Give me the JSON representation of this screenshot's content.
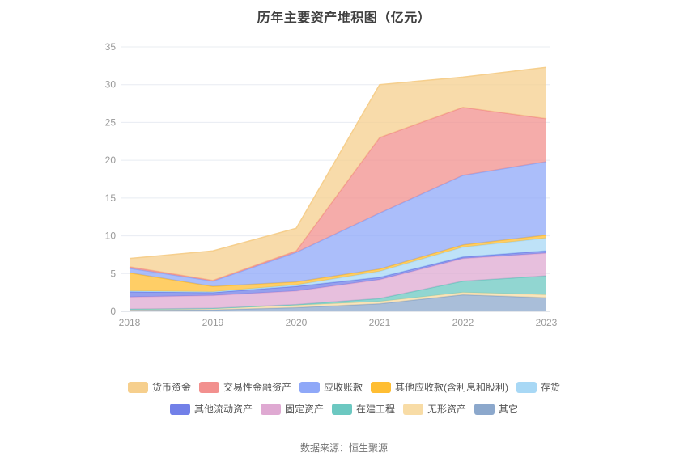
{
  "title": "历年主要资产堆积图（亿元）",
  "footer": {
    "source": "数据来源：恒生聚源"
  },
  "chart_data": {
    "type": "area",
    "stacked": true,
    "title": "历年主要资产堆积图（亿元）",
    "x": [
      "2018",
      "2019",
      "2020",
      "2021",
      "2022",
      "2023"
    ],
    "xlabel": "",
    "ylabel": "",
    "ylim": [
      0,
      35
    ],
    "y_ticks": [
      0,
      5,
      10,
      15,
      20,
      25,
      30,
      35
    ],
    "grid": true,
    "legend_position": "bottom",
    "stack_note": "series listed in legend order (top of stack first); stacking bottom-up uses reverse order",
    "series": [
      {
        "name": "货币资金",
        "color": "#F6CF8D",
        "values": [
          1.1,
          3.9,
          3.0,
          7.0,
          4.0,
          6.8
        ]
      },
      {
        "name": "交易性金融资产",
        "color": "#F2908E",
        "values": [
          0.2,
          0.1,
          0.2,
          10.0,
          9.0,
          5.7
        ]
      },
      {
        "name": "应收账款",
        "color": "#8FA8F8",
        "values": [
          0.6,
          0.7,
          3.9,
          7.4,
          9.2,
          9.7
        ]
      },
      {
        "name": "其他应收款(含利息和股利)",
        "color": "#FFBE33",
        "values": [
          2.4,
          0.7,
          0.4,
          0.3,
          0.3,
          0.4
        ]
      },
      {
        "name": "存货",
        "color": "#A8D8F5",
        "values": [
          0.1,
          0.1,
          0.2,
          0.8,
          1.3,
          1.7
        ]
      },
      {
        "name": "其他流动资产",
        "color": "#7280E8",
        "values": [
          0.7,
          0.4,
          0.6,
          0.3,
          0.2,
          0.3
        ]
      },
      {
        "name": "固定资产",
        "color": "#DFA9D2",
        "values": [
          1.6,
          1.7,
          1.8,
          2.5,
          3.0,
          3.0
        ]
      },
      {
        "name": "在建工程",
        "color": "#6CC8C1",
        "values": [
          0.0,
          0.0,
          0.1,
          0.4,
          1.5,
          2.5
        ]
      },
      {
        "name": "无形资产",
        "color": "#F8DCA6",
        "values": [
          0.15,
          0.2,
          0.3,
          0.3,
          0.3,
          0.4
        ]
      },
      {
        "name": "其它",
        "color": "#8CA8CC",
        "values": [
          0.15,
          0.2,
          0.5,
          1.0,
          2.2,
          1.8
        ]
      }
    ]
  }
}
